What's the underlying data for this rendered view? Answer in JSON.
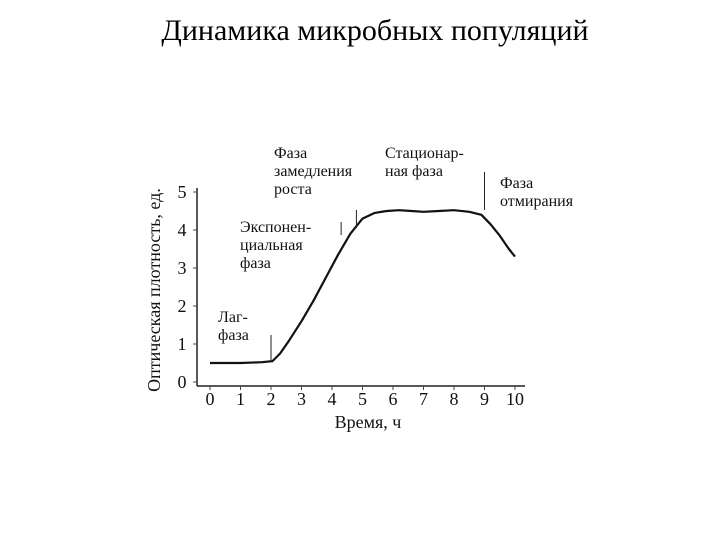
{
  "page": {
    "title": "Динамика микробных популяций"
  },
  "chart_data": {
    "type": "line",
    "xlabel": "Время,  ч",
    "ylabel": "Оптическая плотность,  ед.",
    "xlim": [
      0,
      10
    ],
    "ylim": [
      0,
      5
    ],
    "x_ticks": [
      "0",
      "1",
      "2",
      "3",
      "4",
      "5",
      "6",
      "7",
      "8",
      "9",
      "10"
    ],
    "y_ticks": [
      "0",
      "1",
      "2",
      "3",
      "4",
      "5"
    ],
    "series": [
      {
        "x": [
          0,
          1,
          1.7,
          2.05,
          2.3,
          2.6,
          3,
          3.4,
          3.8,
          4.2,
          4.6,
          5,
          5.4,
          5.8,
          6.2,
          6.6,
          7,
          7.5,
          8,
          8.5,
          8.9,
          9.2,
          9.5,
          9.8,
          10
        ],
        "y": [
          0.5,
          0.5,
          0.52,
          0.55,
          0.75,
          1.1,
          1.6,
          2.15,
          2.75,
          3.35,
          3.9,
          4.3,
          4.45,
          4.5,
          4.52,
          4.5,
          4.48,
          4.5,
          4.52,
          4.48,
          4.4,
          4.15,
          3.85,
          3.5,
          3.3
        ]
      }
    ],
    "annotations": [
      {
        "lines": [
          "Лаг-",
          "фаза"
        ],
        "x": 2.0
      },
      {
        "lines": [
          "Экспонен-",
          "циальная",
          "фаза"
        ],
        "x": 4.3
      },
      {
        "lines": [
          "Фаза",
          "замедления",
          "роста"
        ],
        "x": 4.8
      },
      {
        "lines": [
          "Стационар-",
          "ная фаза"
        ],
        "x": 9.0
      },
      {
        "lines": [
          "Фаза",
          "отмирания"
        ],
        "x": 9.2
      }
    ]
  }
}
